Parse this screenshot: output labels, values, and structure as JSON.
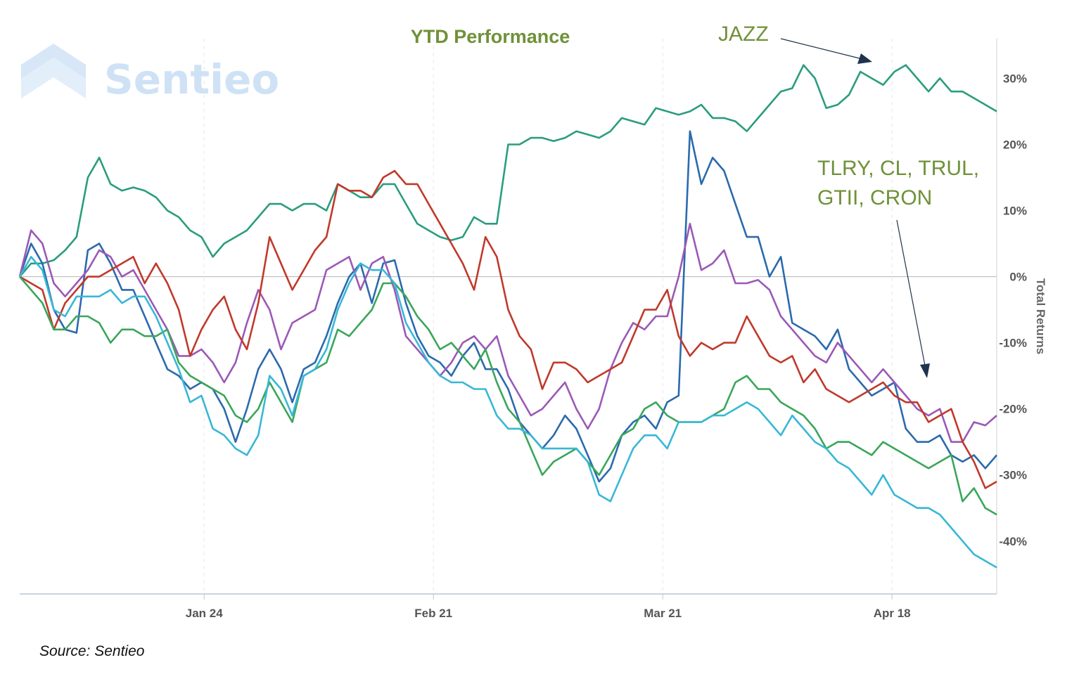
{
  "colors": {
    "accent_text": "#6f9138",
    "grid": "#e6e6e6",
    "zero_line": "#bdbdbd",
    "axis": "#b8c6d8",
    "annotation_arrow": "#1f3350",
    "watermark": "#cfe2f5"
  },
  "watermark": {
    "text": "Sentieo",
    "logo_icon": "chevron-stack-icon"
  },
  "source": "Source: Sentieo",
  "annotations": {
    "jazz": "JAZZ",
    "group_line1": "TLRY, CL, TRUL,",
    "group_line2": "GTII, CRON"
  },
  "chart_data": {
    "type": "line",
    "title": "YTD Performance",
    "ylabel": "Total Returns",
    "ylim": [
      -48,
      36
    ],
    "yticks": [
      30,
      20,
      10,
      0,
      -10,
      -20,
      -30,
      -40
    ],
    "ytick_labels": [
      "30%",
      "20%",
      "10%",
      "0%",
      "-10%",
      "-20%",
      "-30%",
      "-40%"
    ],
    "xtick_labels": [
      "Jan 24",
      "Feb 21",
      "Mar 21",
      "Apr 18"
    ],
    "xtick_index": [
      18.5,
      41.5,
      64.5,
      87.5
    ],
    "x_range": [
      0,
      98
    ],
    "grid": "vertical",
    "series": [
      {
        "color": "#2a9d7e",
        "values": [
          0,
          2,
          2,
          2.5,
          4,
          6,
          15,
          18,
          14,
          13,
          13.5,
          13,
          12,
          10,
          9,
          7,
          6,
          3,
          5,
          6,
          7,
          9,
          11,
          11,
          10,
          11,
          11,
          10,
          14,
          13,
          12,
          12,
          14,
          14,
          11,
          8,
          7,
          6,
          5.5,
          6,
          9,
          8,
          8,
          20,
          20,
          21,
          21,
          20.5,
          21,
          22,
          21.5,
          21,
          22,
          24,
          23.5,
          23,
          25.5,
          25,
          24.5,
          25,
          26,
          24,
          24,
          23.5,
          22,
          24,
          26,
          28,
          28.5,
          32,
          30,
          25.5,
          26,
          27.5,
          31,
          30,
          29,
          31,
          32,
          30,
          28,
          30,
          28,
          28,
          27,
          26,
          25
        ]
      },
      {
        "color": "#2b6aad",
        "values": [
          0,
          5,
          2,
          -5,
          -8,
          -8.5,
          4,
          5,
          2,
          -2,
          -2,
          -6,
          -10,
          -14,
          -15,
          -17,
          -16,
          -17,
          -20,
          -25,
          -20,
          -14,
          -11,
          -14,
          -19,
          -14,
          -13,
          -9,
          -4,
          0,
          2,
          -4,
          2,
          2.5,
          -4,
          -9,
          -12,
          -13,
          -15,
          -12,
          -10,
          -14,
          -14,
          -17,
          -22,
          -24,
          -26,
          -24,
          -21,
          -23,
          -27,
          -31,
          -29,
          -24,
          -22,
          -21,
          -23,
          -19,
          -18,
          22,
          14,
          18,
          16,
          11,
          6,
          6,
          0,
          3,
          -7,
          -8,
          -9,
          -11,
          -8,
          -14,
          -16,
          -18,
          -17,
          -16,
          -23,
          -25,
          -25,
          -24,
          -27,
          -28,
          -27,
          -29,
          -27
        ]
      },
      {
        "color": "#9b59b6",
        "values": [
          0,
          7,
          5,
          -1,
          -3,
          -1,
          1,
          4,
          3,
          0,
          1,
          -2,
          -5,
          -8,
          -12,
          -12,
          -11,
          -13,
          -16,
          -13,
          -7,
          -2,
          -5,
          -11,
          -7,
          -6,
          -5,
          1,
          2,
          3,
          -2,
          2,
          3,
          -2,
          -9,
          -11,
          -13,
          -15,
          -13,
          -10,
          -9,
          -11,
          -9,
          -15,
          -18,
          -21,
          -20,
          -18,
          -16,
          -20,
          -23,
          -20,
          -14,
          -10,
          -7,
          -8,
          -6,
          -6,
          0,
          8,
          1,
          2,
          4,
          -1,
          -1,
          -0.5,
          -2,
          -6,
          -8,
          -10,
          -12,
          -13,
          -10,
          -12,
          -14,
          -16,
          -14,
          -16,
          -18,
          -20,
          -21,
          -20,
          -25,
          -25,
          -22,
          -22.5,
          -21
        ]
      },
      {
        "color": "#c0392b",
        "values": [
          0,
          -1,
          -2,
          -8,
          -4,
          -2,
          0,
          0,
          1,
          2,
          3,
          -1,
          2,
          -1,
          -5,
          -12,
          -8,
          -5,
          -3,
          -8,
          -11,
          -4,
          6,
          2,
          -2,
          1,
          4,
          6,
          14,
          13,
          13,
          12,
          15,
          16,
          14,
          14,
          11,
          8,
          5,
          2,
          -2,
          6,
          3,
          -5,
          -9,
          -11,
          -17,
          -13,
          -13,
          -14,
          -16,
          -15,
          -14,
          -13,
          -9,
          -5,
          -5,
          -2,
          -9,
          -12,
          -10,
          -11,
          -10,
          -10,
          -6,
          -9,
          -12,
          -13,
          -12,
          -16,
          -14,
          -17,
          -18,
          -19,
          -18,
          -17,
          -16,
          -18,
          -19,
          -19,
          -22,
          -21,
          -20,
          -25,
          -28,
          -32,
          -31
        ]
      },
      {
        "color": "#3aa65a",
        "values": [
          0,
          -2,
          -4,
          -8,
          -8,
          -6,
          -6,
          -7,
          -10,
          -8,
          -8,
          -9,
          -9,
          -8,
          -13,
          -15,
          -16,
          -17,
          -18,
          -21,
          -22,
          -20,
          -16,
          -19,
          -22,
          -15,
          -14,
          -13,
          -8,
          -9,
          -7,
          -5,
          -1,
          -1,
          -3,
          -6,
          -8,
          -11,
          -10,
          -12,
          -14,
          -11,
          -16,
          -20,
          -22,
          -26,
          -30,
          -28,
          -27,
          -26,
          -28,
          -30,
          -27,
          -24,
          -23,
          -20,
          -19,
          -21,
          -22,
          -22,
          -22,
          -21,
          -20,
          -16,
          -15,
          -17,
          -17,
          -19,
          -20,
          -21,
          -23,
          -26,
          -25,
          -25,
          -26,
          -27,
          -25,
          -26,
          -27,
          -28,
          -29,
          -28,
          -27,
          -34,
          -32,
          -35,
          -36
        ]
      },
      {
        "color": "#38b8d6",
        "values": [
          0,
          3,
          1,
          -5,
          -6,
          -3,
          -3,
          -3,
          -2,
          -4,
          -3,
          -3,
          -6,
          -10,
          -14,
          -19,
          -18,
          -23,
          -24,
          -26,
          -27,
          -24,
          -15,
          -17,
          -21,
          -15,
          -14,
          -11,
          -5,
          -1,
          2,
          1,
          1,
          -1,
          -7,
          -10,
          -13,
          -15,
          -16,
          -16,
          -17,
          -17,
          -21,
          -23,
          -23,
          -24,
          -26,
          -26,
          -26,
          -26,
          -28,
          -33,
          -34,
          -30,
          -26,
          -24,
          -24,
          -26,
          -22,
          -22,
          -22,
          -21,
          -21,
          -20,
          -19,
          -20,
          -22,
          -24,
          -21,
          -23,
          -25,
          -26,
          -28,
          -29,
          -31,
          -33,
          -30,
          -33,
          -34,
          -35,
          -35,
          -36,
          -38,
          -40,
          -42,
          -43,
          -44
        ]
      }
    ]
  }
}
